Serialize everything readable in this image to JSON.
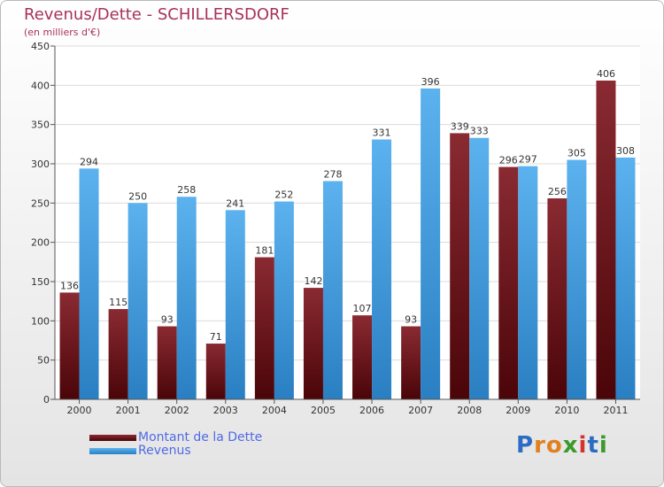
{
  "chart_data": {
    "type": "bar",
    "title": "Revenus/Dette - SCHILLERSDORF",
    "subtitle": "(en milliers d'€)",
    "xlabel": "",
    "ylabel": "",
    "ylim": [
      0,
      450
    ],
    "yticks": [
      0,
      50,
      100,
      150,
      200,
      250,
      300,
      350,
      400,
      450
    ],
    "grid": true,
    "legend_position": "bottom-left",
    "categories": [
      "2000",
      "2001",
      "2002",
      "2003",
      "2004",
      "2005",
      "2006",
      "2007",
      "2008",
      "2009",
      "2010",
      "2011"
    ],
    "series": [
      {
        "name": "Montant de la Dette",
        "color": "#7a1f26",
        "values": [
          136,
          115,
          93,
          71,
          181,
          142,
          107,
          93,
          339,
          296,
          256,
          406
        ]
      },
      {
        "name": "Revenus",
        "color": "#4ea6e6",
        "values": [
          294,
          250,
          258,
          241,
          252,
          278,
          331,
          396,
          333,
          297,
          305,
          308
        ]
      }
    ]
  },
  "logo": {
    "letters": [
      "P",
      "r",
      "o",
      "x",
      "i",
      "t",
      "i"
    ],
    "colors": [
      "#2c6cc4",
      "#e0801e",
      "#e0801e",
      "#3a9a2a",
      "#d6332e",
      "#2c6cc4",
      "#3a9a2a"
    ]
  }
}
